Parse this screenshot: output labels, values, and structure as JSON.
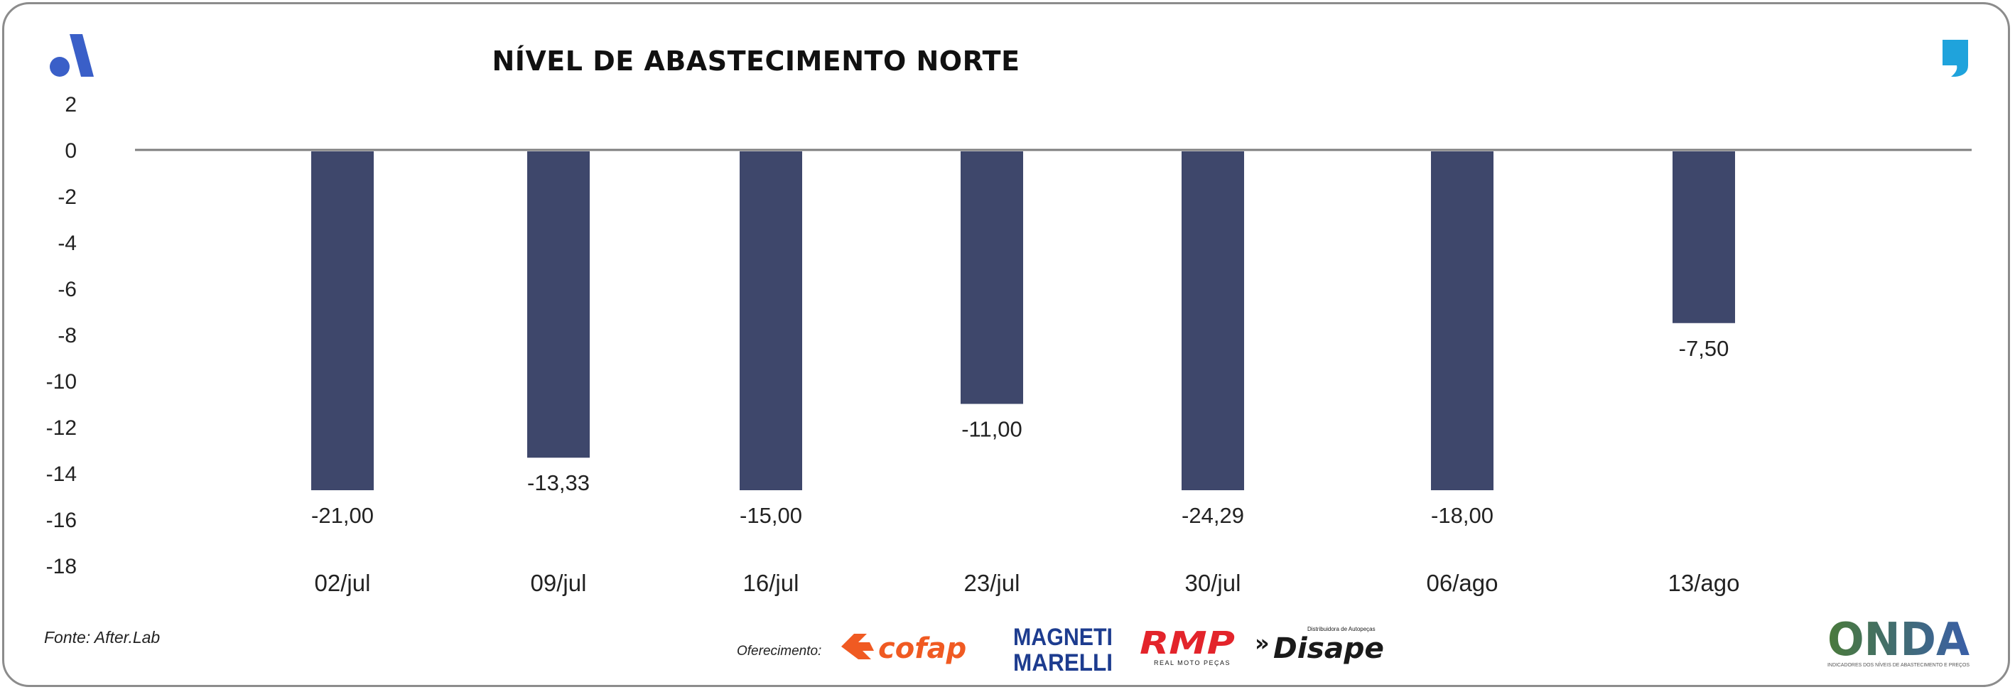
{
  "chart_data": {
    "type": "bar",
    "title": "NÍVEL DE ABASTECIMENTO NORTE",
    "categories": [
      "02/jul",
      "09/jul",
      "16/jul",
      "23/jul",
      "30/jul",
      "06/ago",
      "13/ago"
    ],
    "values": [
      -21.0,
      -13.33,
      -15.0,
      -11.0,
      -24.29,
      -18.0,
      -7.5
    ],
    "value_labels": [
      "-21,00",
      "-13,33",
      "-15,00",
      "-11,00",
      "-24,29",
      "-18,00",
      "-7,50"
    ],
    "yticks": [
      "2",
      "0",
      "-2",
      "-4",
      "-6",
      "-8",
      "-10",
      "-12",
      "-14",
      "-16",
      "-18"
    ],
    "ylim": [
      -18,
      2
    ],
    "xlabel": "",
    "ylabel": "",
    "grid": false,
    "legend": "none",
    "bar_color": "#3e476b",
    "axis_color": "#7f7f7f"
  },
  "footer": {
    "source": "Fonte: After.Lab",
    "sponsor_label": "Oferecimento:"
  },
  "logos": {
    "cofap": "cofap",
    "magneti_line1": "MAGNETI",
    "magneti_line2": "MARELLI",
    "rmp": "RMP",
    "rmp_sub": "REAL MOTO PEÇAS",
    "disape": "Disape",
    "disape_prefix": "»",
    "disape_tag": "Distribuidora de Autopeças",
    "onda": "ONDA",
    "onda_sub": "INDICADORES DOS NÍVEIS DE ABASTECIMENTO E PREÇOS"
  },
  "colors": {
    "cofap": "#f05a22",
    "magneti": "#1d3c8f",
    "rmp": "#e3242b",
    "disape": "#1a1a1a",
    "onda_green": "#4a7a3b",
    "onda_blue": "#3a5fa8",
    "brand_a": "#3a5fc8",
    "quote": "#1fa3dc"
  }
}
